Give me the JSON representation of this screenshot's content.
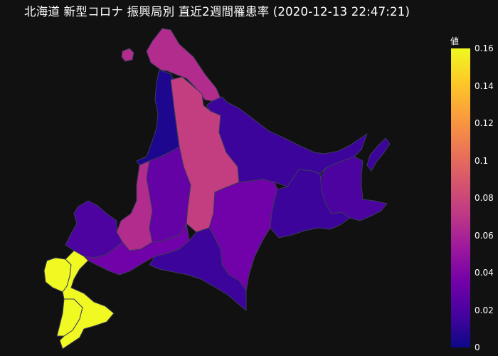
{
  "title": "北海道 新型コロナ 振興局別 直近2週間罹患率 (2020-12-13 22:47:21)",
  "colorbar": {
    "title": "値",
    "min": 0,
    "max": 0.16,
    "ticks": [
      "0",
      "0.02",
      "0.04",
      "0.06",
      "0.08",
      "0.1",
      "0.12",
      "0.14",
      "0.16"
    ],
    "colorscale": [
      "#0d0887",
      "#46039f",
      "#7201a8",
      "#9c179e",
      "#bd3786",
      "#d8576b",
      "#ed7953",
      "#fb9f3a",
      "#fdca26",
      "#f0f921"
    ]
  },
  "chart_data": {
    "type": "choropleth",
    "title": "北海道 新型コロナ 振興局別 直近2週間罹患率 (2020-12-13 22:47:21)",
    "colorbar_title": "値",
    "range": [
      0,
      0.16
    ],
    "regions": [
      {
        "name": "宗谷",
        "value": 0.065
      },
      {
        "name": "留萌",
        "value": 0.005
      },
      {
        "name": "上川",
        "value": 0.075
      },
      {
        "name": "オホーツク",
        "value": 0.015
      },
      {
        "name": "根室",
        "value": 0.02
      },
      {
        "name": "釧路",
        "value": 0.015
      },
      {
        "name": "十勝",
        "value": 0.035
      },
      {
        "name": "空知",
        "value": 0.03
      },
      {
        "name": "石狩",
        "value": 0.065
      },
      {
        "name": "後志",
        "value": 0.02
      },
      {
        "name": "胆振",
        "value": 0.035
      },
      {
        "name": "日高",
        "value": 0.015
      },
      {
        "name": "檜山",
        "value": 0.16
      },
      {
        "name": "渡島",
        "value": 0.16
      }
    ]
  }
}
